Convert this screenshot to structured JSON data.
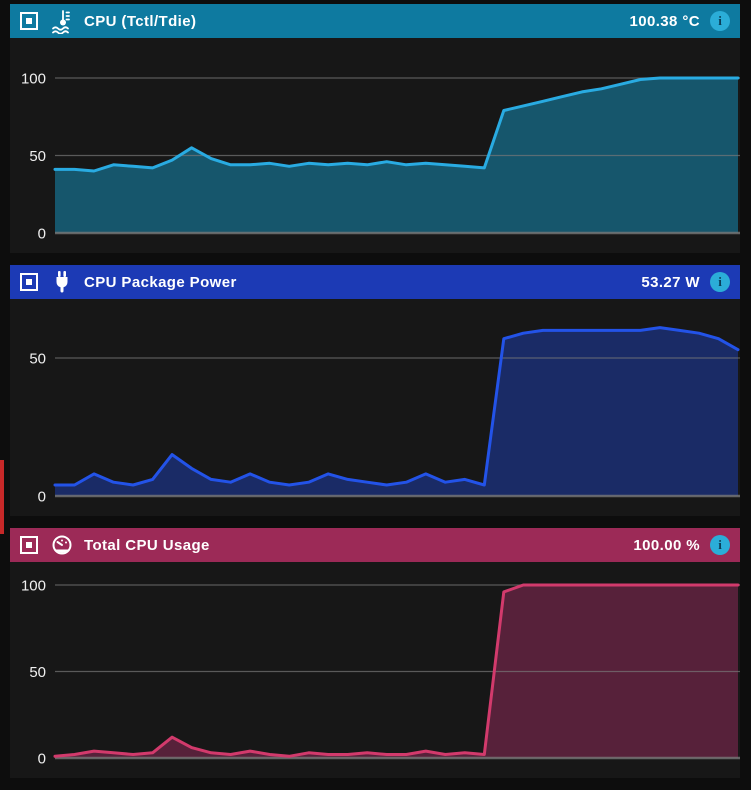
{
  "page": {
    "background": "#0d0d0d",
    "chart_background": "#171717",
    "grid_color": "#787878",
    "left_accent_color": "#c62828",
    "info_icon_color": "#2badd8"
  },
  "panels": [
    {
      "header": {
        "title": "CPU (Tctl/Tdie)",
        "value": "100.38 °C",
        "color": "#0e7aa0",
        "icon": "thermometer-water-icon",
        "info_label": "i"
      },
      "chart_data": {
        "type": "area",
        "title": "CPU (Tctl/Tdie)",
        "ylabel": "°C",
        "ylim": [
          0,
          105
        ],
        "yticks": [
          0,
          50,
          100
        ],
        "grid": true,
        "legend": "none",
        "line_color": "#29abe2",
        "fill_color": "#16566c",
        "values": [
          41,
          41,
          40,
          44,
          43,
          42,
          47,
          55,
          48,
          44,
          44,
          45,
          43,
          45,
          44,
          45,
          44,
          46,
          44,
          45,
          44,
          43,
          42,
          79,
          82,
          85,
          88,
          91,
          93,
          96,
          99,
          100,
          100,
          100,
          100,
          100
        ]
      }
    },
    {
      "header": {
        "title": "CPU Package Power",
        "value": "53.27 W",
        "color": "#1c3ab5",
        "icon": "power-plug-icon",
        "info_label": "i"
      },
      "chart_data": {
        "type": "area",
        "title": "CPU Package Power",
        "ylabel": "W",
        "ylim": [
          0,
          70
        ],
        "yticks": [
          0,
          50
        ],
        "grid": true,
        "legend": "none",
        "line_color": "#2353e8",
        "fill_color": "#1a2b66",
        "values": [
          4,
          4,
          8,
          5,
          4,
          6,
          15,
          10,
          6,
          5,
          8,
          5,
          4,
          5,
          8,
          6,
          5,
          4,
          5,
          8,
          5,
          6,
          4,
          57,
          59,
          60,
          60,
          60,
          60,
          60,
          60,
          61,
          60,
          59,
          57,
          53
        ]
      }
    },
    {
      "header": {
        "title": "Total CPU Usage",
        "value": "100.00 %",
        "color": "#9c2a57",
        "icon": "gauge-icon",
        "info_label": "i"
      },
      "chart_data": {
        "type": "area",
        "title": "Total CPU Usage",
        "ylabel": "%",
        "ylim": [
          0,
          112
        ],
        "yticks": [
          0,
          50,
          100
        ],
        "grid": true,
        "legend": "none",
        "line_color": "#d23a6c",
        "fill_color": "#57213a",
        "values": [
          1,
          2,
          4,
          3,
          2,
          3,
          12,
          6,
          3,
          2,
          4,
          2,
          1,
          3,
          2,
          2,
          3,
          2,
          2,
          4,
          2,
          3,
          2,
          96,
          100,
          100,
          100,
          100,
          100,
          100,
          100,
          100,
          100,
          100,
          100,
          100
        ]
      }
    }
  ]
}
